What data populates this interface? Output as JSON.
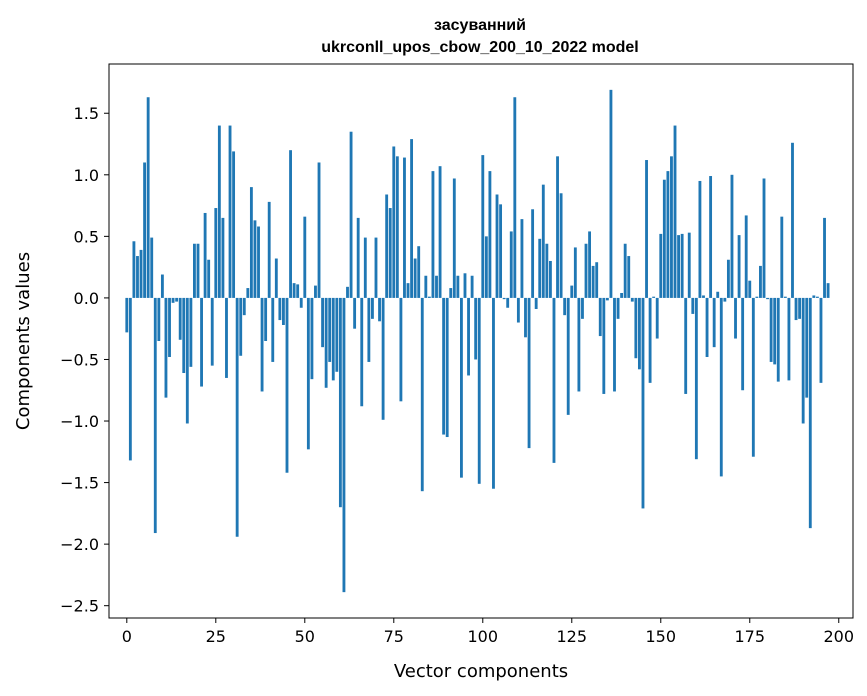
{
  "chart_data": {
    "type": "bar",
    "title": "засуванний",
    "subtitle": "ukrconll_upos_cbow_200_10_2022 model",
    "xlabel": "Vector components",
    "ylabel": "Components values",
    "xlim": [
      -5,
      204
    ],
    "ylim": [
      -2.6,
      1.9
    ],
    "xticks": [
      0,
      25,
      50,
      75,
      100,
      125,
      150,
      175,
      200
    ],
    "yticks": [
      -2.5,
      -2.0,
      -1.5,
      -1.0,
      -0.5,
      0.0,
      0.5,
      1.0,
      1.5
    ],
    "ytick_labels": [
      "−2.5",
      "−2.0",
      "−1.5",
      "−1.0",
      "−0.5",
      "0.0",
      "0.5",
      "1.0",
      "1.5"
    ],
    "bar_color": "#1f77b4",
    "grid": false,
    "values": [
      -0.28,
      -1.32,
      0.46,
      0.34,
      0.39,
      1.1,
      1.63,
      0.49,
      -1.91,
      -0.35,
      0.19,
      -0.81,
      -0.48,
      -0.04,
      -0.03,
      -0.34,
      -0.61,
      -1.02,
      -0.56,
      0.44,
      0.44,
      -0.72,
      0.69,
      0.31,
      -0.55,
      0.73,
      1.4,
      0.65,
      -0.65,
      1.4,
      1.19,
      -1.94,
      -0.47,
      -0.14,
      0.08,
      0.9,
      0.63,
      0.58,
      -0.76,
      -0.35,
      0.78,
      -0.52,
      0.32,
      -0.18,
      -0.22,
      -1.42,
      1.2,
      0.12,
      0.11,
      -0.08,
      0.66,
      -1.23,
      -0.66,
      0.1,
      1.1,
      -0.4,
      -0.73,
      -0.52,
      -0.67,
      -0.6,
      -1.7,
      -2.39,
      0.09,
      1.35,
      -0.25,
      0.65,
      -0.88,
      0.49,
      -0.52,
      -0.17,
      0.49,
      -0.19,
      -0.99,
      0.84,
      0.73,
      1.23,
      1.15,
      -0.84,
      1.14,
      0.12,
      1.29,
      0.32,
      0.42,
      -1.57,
      0.18,
      0.01,
      1.03,
      0.18,
      1.07,
      -1.11,
      -1.13,
      0.08,
      0.97,
      0.18,
      -1.46,
      0.2,
      -0.63,
      0.18,
      -0.5,
      -1.51,
      1.16,
      0.5,
      1.03,
      -1.55,
      0.84,
      0.76,
      -0.01,
      -0.08,
      0.54,
      1.63,
      -0.2,
      0.64,
      -0.32,
      -1.22,
      0.72,
      -0.09,
      0.48,
      0.92,
      0.44,
      0.3,
      -1.34,
      1.15,
      0.85,
      -0.14,
      -0.95,
      0.1,
      0.41,
      -0.76,
      -0.17,
      0.44,
      0.54,
      0.26,
      0.29,
      -0.31,
      -0.78,
      -0.02,
      1.69,
      -0.76,
      -0.17,
      0.04,
      0.44,
      0.34,
      -0.03,
      -0.49,
      -0.58,
      -1.71,
      1.12,
      -0.69,
      0.01,
      -0.33,
      0.52,
      0.96,
      1.03,
      1.15,
      1.4,
      0.51,
      0.52,
      -0.78,
      0.53,
      -0.13,
      -1.31,
      0.95,
      0.02,
      -0.48,
      0.99,
      -0.4,
      0.05,
      -1.45,
      -0.03,
      0.31,
      1.0,
      -0.33,
      0.51,
      -0.75,
      0.67,
      0.14,
      -1.29,
      0.01,
      0.26,
      0.97,
      -0.01,
      -0.52,
      -0.54,
      -0.68,
      0.66,
      0.01,
      -0.67,
      1.26,
      -0.18,
      -0.17,
      -1.02,
      -0.81,
      -1.87,
      0.02,
      0.01,
      -0.69,
      0.65,
      0.12
    ]
  }
}
